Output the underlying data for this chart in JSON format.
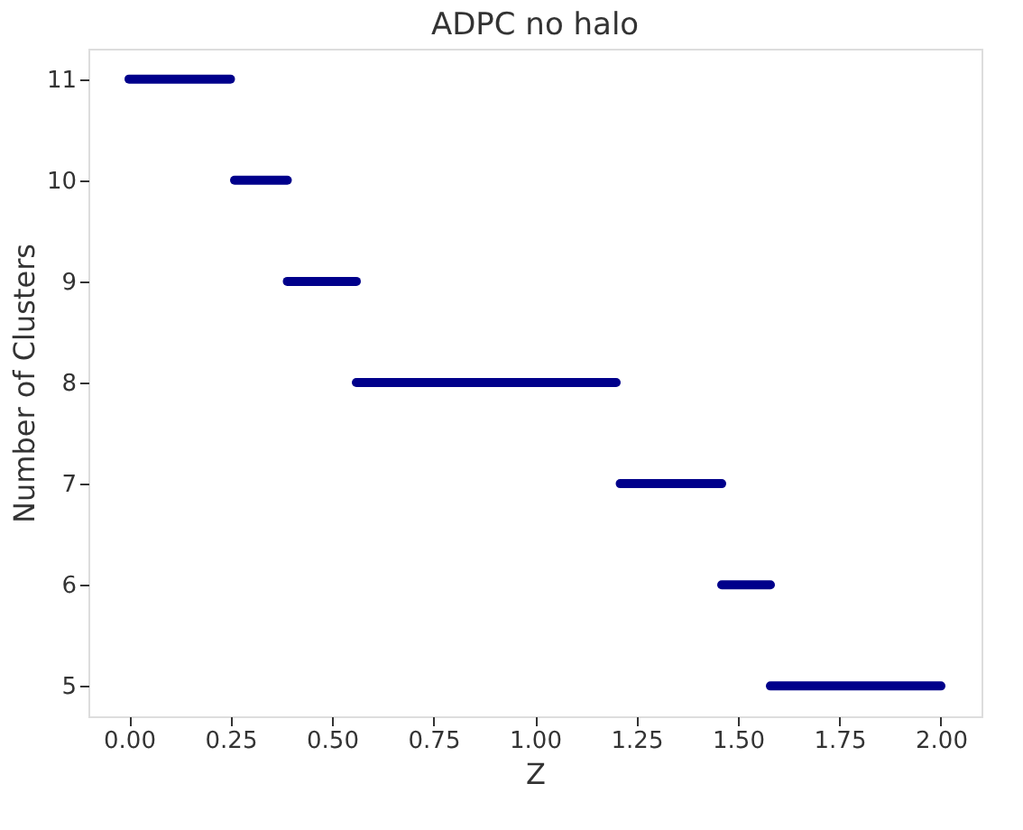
{
  "chart_data": {
    "type": "line",
    "title": "ADPC no halo",
    "xlabel": "Z",
    "ylabel": "Number of Clusters",
    "xlim": [
      -0.1,
      2.1
    ],
    "ylim": [
      4.7,
      11.3
    ],
    "xticks": [
      {
        "value": 0,
        "label": "0.00"
      },
      {
        "value": 0.25,
        "label": "0.25"
      },
      {
        "value": 0.5,
        "label": "0.50"
      },
      {
        "value": 0.75,
        "label": "0.75"
      },
      {
        "value": 1,
        "label": "1.00"
      },
      {
        "value": 1.25,
        "label": "1.25"
      },
      {
        "value": 1.5,
        "label": "1.50"
      },
      {
        "value": 1.75,
        "label": "1.75"
      },
      {
        "value": 2,
        "label": "2.00"
      }
    ],
    "yticks": [
      5,
      6,
      7,
      8,
      9,
      10,
      11
    ],
    "grid": false,
    "legend": false,
    "marker": "none",
    "line_style": "solid",
    "series": [
      {
        "color": "#00008b",
        "x": [
          0,
          0.25
        ],
        "values": [
          11,
          11
        ]
      },
      {
        "color": "#00008b",
        "x": [
          0.26,
          0.39
        ],
        "values": [
          10,
          10
        ]
      },
      {
        "color": "#00008b",
        "x": [
          0.39,
          0.56
        ],
        "values": [
          9,
          9
        ]
      },
      {
        "color": "#00008b",
        "x": [
          0.56,
          1.2
        ],
        "values": [
          8,
          8
        ]
      },
      {
        "color": "#00008b",
        "x": [
          1.21,
          1.46
        ],
        "values": [
          7,
          7
        ]
      },
      {
        "color": "#00008b",
        "x": [
          1.46,
          1.58
        ],
        "values": [
          6,
          6
        ]
      },
      {
        "color": "#00008b",
        "x": [
          1.58,
          2.0
        ],
        "values": [
          5,
          5
        ]
      }
    ]
  }
}
